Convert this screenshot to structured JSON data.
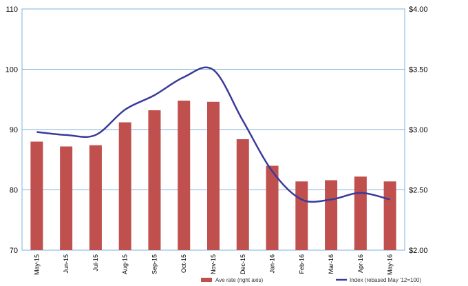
{
  "chart_data": {
    "type": "bar",
    "categories": [
      "May-15",
      "Jun-15",
      "Jul-15",
      "Aug-15",
      "Sep-15",
      "Oct-15",
      "Nov-15",
      "Dec-15",
      "Jan-16",
      "Feb-16",
      "Mar-16",
      "Apr-16",
      "May-16"
    ],
    "series": [
      {
        "name": "Ave rate (right axis)",
        "type": "bar",
        "axis": "right",
        "color": "#c0504d",
        "values": [
          2.9,
          2.86,
          2.87,
          3.06,
          3.16,
          3.24,
          3.23,
          2.92,
          2.7,
          2.57,
          2.58,
          2.61,
          2.57
        ]
      },
      {
        "name": "Index (rebased May '12=100)",
        "type": "line",
        "axis": "left",
        "color": "#3a3a9c",
        "values": [
          89.6,
          89.1,
          89.1,
          93.3,
          95.7,
          98.7,
          99.9,
          91.5,
          83.1,
          78.4,
          78.4,
          79.5,
          78.4
        ]
      }
    ],
    "y_left": {
      "ylim": [
        70,
        110
      ],
      "ticks": [
        "70",
        "80",
        "90",
        "100",
        "110"
      ],
      "tick_values": [
        70,
        80,
        90,
        100,
        110
      ]
    },
    "y_right": {
      "ylim": [
        2.0,
        4.0
      ],
      "ticks": [
        "$2.00",
        "$2.50",
        "$3.00",
        "$3.50",
        "$4.00"
      ],
      "tick_values": [
        2.0,
        2.5,
        3.0,
        3.5,
        4.0
      ]
    },
    "grid": true,
    "legend_position": "bottom"
  }
}
